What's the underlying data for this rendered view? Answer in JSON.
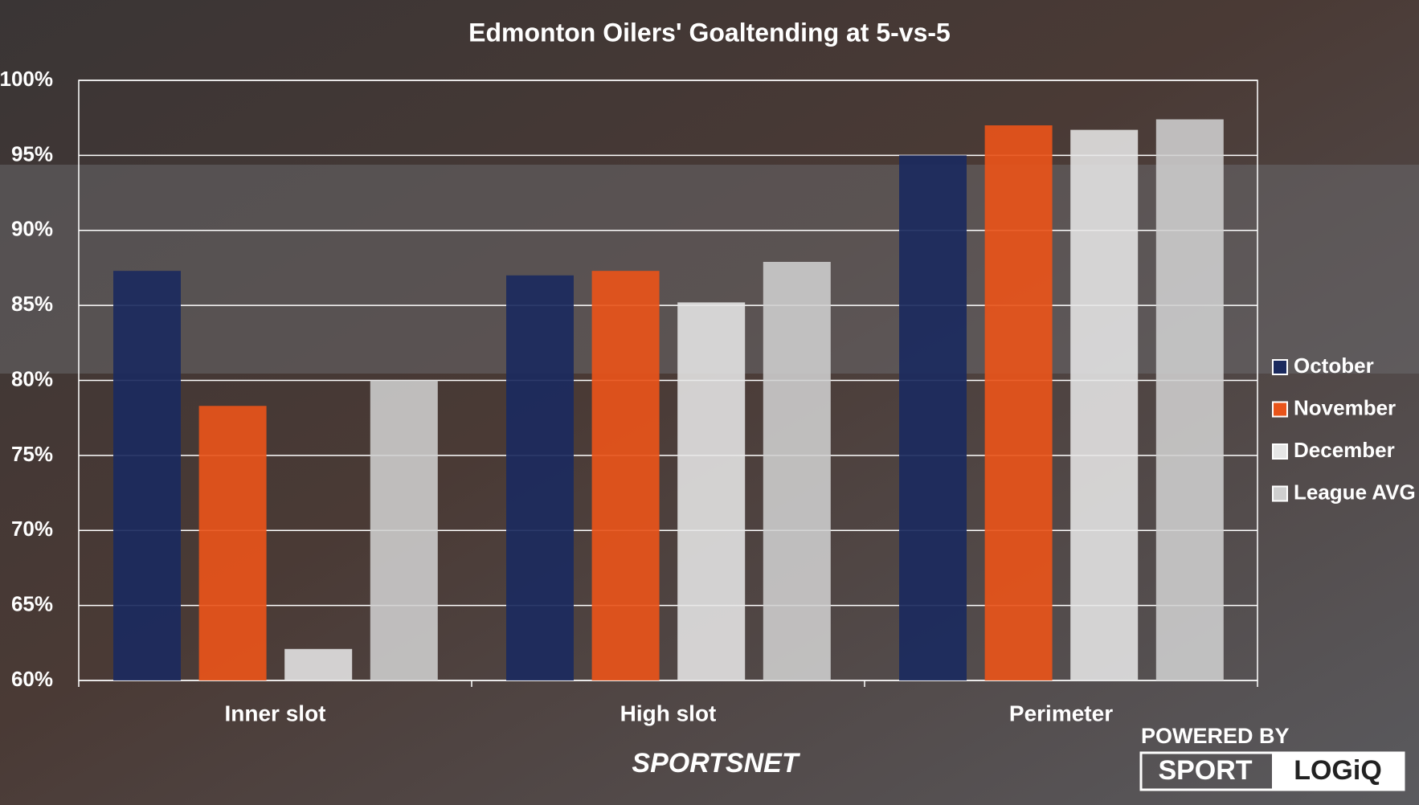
{
  "chart_data": {
    "type": "bar",
    "title": "Edmonton Oilers' Goaltending at 5-vs-5",
    "categories": [
      "Inner slot",
      "High slot",
      "Perimeter"
    ],
    "series": [
      {
        "name": "October",
        "color": "#1b2a5e",
        "values": [
          87.3,
          87.0,
          95.0
        ]
      },
      {
        "name": "November",
        "color": "#e8541a",
        "values": [
          78.3,
          87.3,
          97.0
        ]
      },
      {
        "name": "December",
        "color": "#e6e6e6",
        "values": [
          62.1,
          85.2,
          96.7
        ]
      },
      {
        "name": "League AVG",
        "color": "#cfcfcf",
        "values": [
          80.0,
          87.9,
          97.4
        ]
      }
    ],
    "ylim": [
      60,
      100
    ],
    "yticks": [
      {
        "value": 60,
        "label": "60%"
      },
      {
        "value": 65,
        "label": "65%"
      },
      {
        "value": 70,
        "label": "70%"
      },
      {
        "value": 75,
        "label": "75%"
      },
      {
        "value": 80,
        "label": "80%"
      },
      {
        "value": 85,
        "label": "85%"
      },
      {
        "value": 90,
        "label": "90%"
      },
      {
        "value": 95,
        "label": "95%"
      },
      {
        "value": 100,
        "label": "100%"
      }
    ],
    "grid": true,
    "legend": "right"
  },
  "branding": {
    "network": "SPORTSNET",
    "powered_by": "POWERED BY",
    "sport": "SPORT",
    "logiq": "LOGiQ"
  }
}
